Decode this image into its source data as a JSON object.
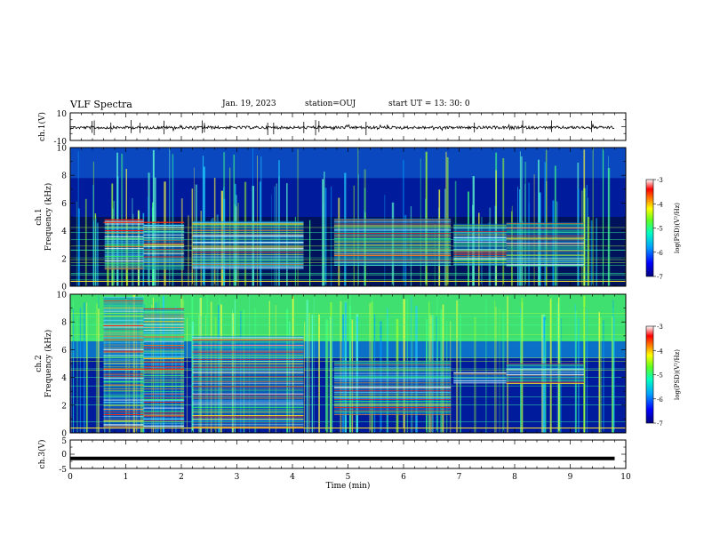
{
  "header": {
    "title": "VLF Spectra",
    "date": "Jan. 19, 2023",
    "station": "station=OUJ",
    "start": "start  UT =  13: 30: 0"
  },
  "chart_data": [
    {
      "type": "line",
      "name": "ch1-waveform",
      "ylabel": "ch.1(V)",
      "ylim": [
        -10,
        10
      ],
      "yticks": [
        "10",
        "-10"
      ],
      "trace": {
        "mean_v": 0,
        "amplitude_v": 1.5,
        "x_max_min": 9.8
      }
    },
    {
      "type": "heatmap",
      "name": "ch1-spectrogram",
      "ylabel_top": "ch.1",
      "ylabel": "Frequency (kHz)",
      "ylim": [
        0,
        10
      ],
      "yticks": [
        "0",
        "2",
        "4",
        "6",
        "8",
        "10"
      ],
      "xlim": [
        0,
        10
      ],
      "bands": [
        {
          "t0": 0.62,
          "t1": 1.32,
          "f0": 1.2,
          "f1": 4.8
        },
        {
          "t0": 1.32,
          "t1": 2.05,
          "f0": 1.2,
          "f1": 4.5
        },
        {
          "t0": 2.2,
          "t1": 4.2,
          "f0": 1.2,
          "f1": 4.7
        },
        {
          "t0": 4.75,
          "t1": 6.85,
          "f0": 1.5,
          "f1": 4.9
        },
        {
          "t0": 6.9,
          "t1": 7.85,
          "f0": 1.5,
          "f1": 4.5
        },
        {
          "t0": 7.85,
          "t1": 9.25,
          "f0": 1.4,
          "f1": 4.6
        }
      ],
      "colorbar": {
        "label": "log(PSD)(V²/Hz)",
        "ticks": [
          "-3",
          "-4",
          "-5",
          "-6",
          "-7"
        ],
        "range": [
          -7,
          -3
        ]
      }
    },
    {
      "type": "heatmap",
      "name": "ch2-spectrogram",
      "ylabel_top": "ch.2",
      "ylabel": "Frequency (kHz)",
      "ylim": [
        0,
        10
      ],
      "yticks": [
        "0",
        "2",
        "4",
        "6",
        "8",
        "10"
      ],
      "xlim": [
        0,
        10
      ],
      "bands": [
        {
          "t0": 0.6,
          "t1": 1.32,
          "f0": 0.3,
          "f1": 9.8
        },
        {
          "t0": 1.32,
          "t1": 2.05,
          "f0": 0.4,
          "f1": 9.0
        },
        {
          "t0": 2.2,
          "t1": 4.2,
          "f0": 0.4,
          "f1": 7.0
        },
        {
          "t0": 4.75,
          "t1": 6.85,
          "f0": 1.3,
          "f1": 5.2
        },
        {
          "t0": 6.9,
          "t1": 7.85,
          "f0": 3.6,
          "f1": 4.4
        },
        {
          "t0": 7.85,
          "t1": 9.25,
          "f0": 3.5,
          "f1": 5.0
        }
      ],
      "colorbar": {
        "label": "log(PSD)(V²/Hz)",
        "ticks": [
          "-3",
          "-4",
          "-5",
          "-6",
          "-7"
        ],
        "range": [
          -7,
          -3
        ]
      }
    },
    {
      "type": "line",
      "name": "ch3-trace",
      "ylabel": "ch.3(V)",
      "ylim": [
        -5,
        5
      ],
      "yticks": [
        "5",
        "0",
        "-5"
      ],
      "value_v": -1.5,
      "xlabel": "Time  (min)",
      "xlim": [
        0,
        10
      ],
      "xticks": [
        "0",
        "1",
        "2",
        "3",
        "4",
        "5",
        "6",
        "7",
        "8",
        "9",
        "10"
      ]
    }
  ],
  "colors": {
    "background": "#ffffff",
    "axes": "#000000",
    "colormap": [
      "#000080",
      "#0000ff",
      "#00a0ff",
      "#00ffc0",
      "#60ff20",
      "#ffff00",
      "#ff8000",
      "#ff0000",
      "#ffffff"
    ]
  }
}
